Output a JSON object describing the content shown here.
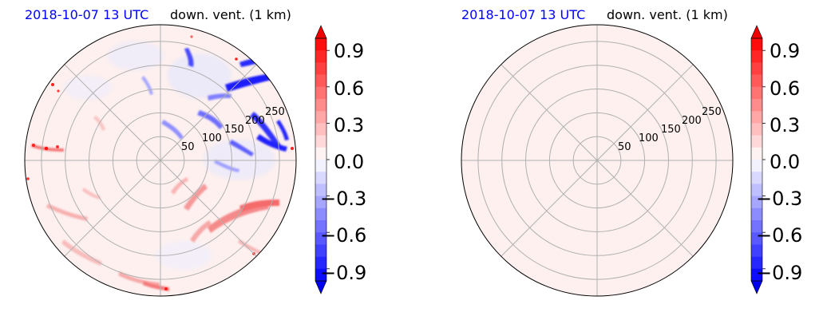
{
  "chart_data": [
    {
      "type": "heatmap",
      "projection": "polar",
      "title_left": "2018-10-07 13 UTC",
      "title_right": "down. vent. (1 km)",
      "title_left_color": "#0000ff",
      "radial_ticks": [
        "50",
        "100",
        "150",
        "200",
        "250"
      ],
      "radial_tick_values": [
        50,
        100,
        150,
        200,
        250
      ],
      "r_max": 285,
      "angular_gridlines_deg": [
        0,
        45,
        90,
        135,
        180,
        225,
        270,
        315
      ],
      "grid": true,
      "field_description_values": {
        "background": 0.03,
        "negative_band_northeast": -0.9,
        "positive_streaks_southeast": 0.5,
        "positive_patches_edge": 0.8
      },
      "colorbar": {
        "colormap": "bwr",
        "vmin": -1.0,
        "vmax": 1.0,
        "extend": "both",
        "levels": 20,
        "tick_labels": [
          "0.9",
          "0.6",
          "0.3",
          "0.0",
          "−0.3",
          "−0.6",
          "−0.9"
        ],
        "tick_values": [
          0.9,
          0.6,
          0.3,
          0.0,
          -0.3,
          -0.6,
          -0.9
        ]
      }
    },
    {
      "type": "heatmap",
      "projection": "polar",
      "title_left": "2018-10-07 13 UTC",
      "title_right": "down. vent. (1 km)",
      "title_left_color": "#0000ff",
      "radial_ticks": [
        "50",
        "100",
        "150",
        "200",
        "250"
      ],
      "radial_tick_values": [
        50,
        100,
        150,
        200,
        250
      ],
      "r_max": 285,
      "angular_gridlines_deg": [
        0,
        45,
        90,
        135,
        180,
        225,
        270,
        315
      ],
      "grid": true,
      "field_description_values": {
        "uniform": 0.05
      },
      "colorbar": {
        "colormap": "bwr",
        "vmin": -1.0,
        "vmax": 1.0,
        "extend": "both",
        "levels": 20,
        "tick_labels": [
          "0.9",
          "0.6",
          "0.3",
          "0.0",
          "−0.3",
          "−0.6",
          "−0.9"
        ],
        "tick_values": [
          0.9,
          0.6,
          0.3,
          0.0,
          -0.3,
          -0.6,
          -0.9
        ]
      }
    }
  ]
}
